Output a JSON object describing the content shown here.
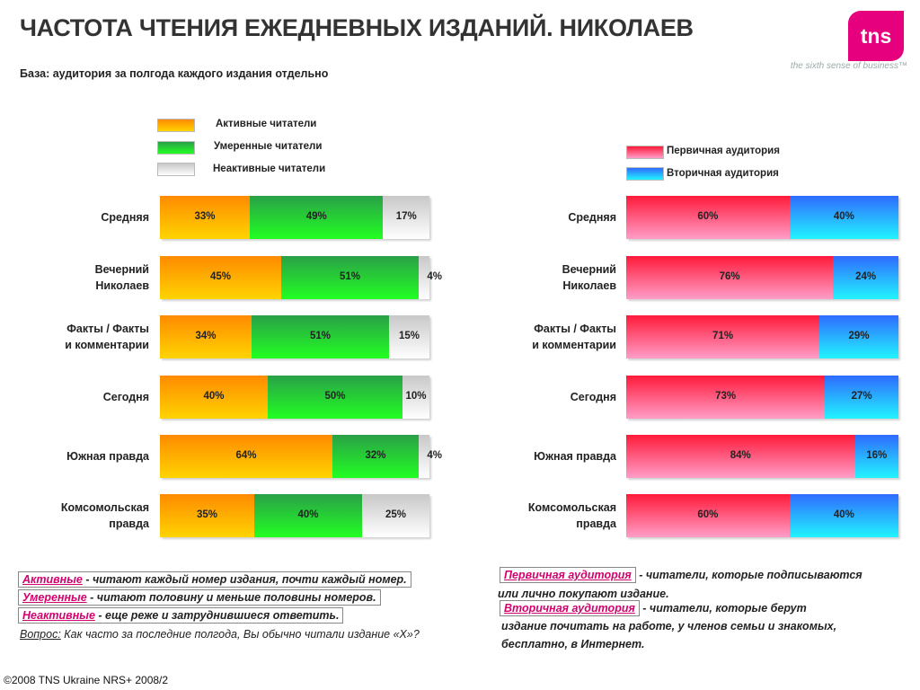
{
  "header": {
    "title": "ЧАСТОТА ЧТЕНИЯ ЕЖЕДНЕВНЫХ ИЗДАНИЙ. НИКОЛАЕВ",
    "subtitle": "База: аудитория за полгода каждого издания отдельно",
    "logo_text": "tns",
    "tagline": "the sixth sense of business™"
  },
  "colors": {
    "active": "#ffb000",
    "moderate": "#22cc33",
    "inactive": "#e0e0e0",
    "primary": "#ff3355",
    "secondary": "#22aaff",
    "accent": "#e6007e"
  },
  "chart_data": [
    {
      "type": "bar",
      "stacked": true,
      "orientation": "horizontal",
      "categories": [
        "Средняя",
        "Вечерний\nНиколаев",
        "Факты / Факты\nи комментарии",
        "Сегодня",
        "Южная правда",
        "Комсомольская\nправда"
      ],
      "series": [
        {
          "name": "Активные читатели",
          "values": [
            33,
            45,
            34,
            40,
            64,
            35
          ],
          "labels": [
            "33%",
            "45%",
            "34%",
            "40%",
            "64%",
            "35%"
          ]
        },
        {
          "name": "Умеренные читатели",
          "values": [
            49,
            51,
            51,
            50,
            32,
            40
          ],
          "labels": [
            "49%",
            "51%",
            "51%",
            "50%",
            "32%",
            "40%"
          ]
        },
        {
          "name": "Неактивные читатели",
          "values": [
            17,
            4,
            15,
            10,
            4,
            25
          ],
          "labels": [
            "17%",
            "4%",
            "15%",
            "10%",
            "4%",
            "25%"
          ]
        }
      ],
      "legend": "top"
    },
    {
      "type": "bar",
      "stacked": true,
      "orientation": "horizontal",
      "categories": [
        "Средняя",
        "Вечерний\nНиколаев",
        "Факты / Факты\nи комментарии",
        "Сегодня",
        "Южная правда",
        "Комсомольская\nправда"
      ],
      "series": [
        {
          "name": "Первичная аудитория",
          "values": [
            60,
            76,
            71,
            73,
            84,
            60
          ],
          "labels": [
            "60%",
            "76%",
            "71%",
            "73%",
            "84%",
            "60%"
          ]
        },
        {
          "name": "Вторичная аудитория",
          "values": [
            40,
            24,
            29,
            27,
            16,
            40
          ],
          "labels": [
            "40%",
            "24%",
            "29%",
            "27%",
            "16%",
            "40%"
          ]
        }
      ],
      "legend": "top"
    }
  ],
  "notes": {
    "active_term": "Активные",
    "active_text": " - читают каждый номер издания, почти каждый номер.",
    "moderate_term": "Умеренные",
    "moderate_text": " - читают половину и меньше  половины номеров.",
    "inactive_term": "Неактивные",
    "inactive_text": " - еще реже и затруднившиеся ответить.",
    "question_label": "Вопрос:",
    "question_text": " Как часто за последние полгода, Вы обычно читали издание «Х»?",
    "primary_term": "Первичная аудитория",
    "primary_text": " - читатели, которые подписываются",
    "primary_text2": "или лично покупают издание.",
    "secondary_term": "Вторичная аудитория",
    "secondary_text": " - читатели, которые берут",
    "secondary_text2": "издание почитать на работе, у членов семьи и знакомых,",
    "secondary_text3": "бесплатно, в Интернет."
  },
  "footer": {
    "copyright": "©2008 TNS Ukraine  NRS+ 2008/2"
  }
}
